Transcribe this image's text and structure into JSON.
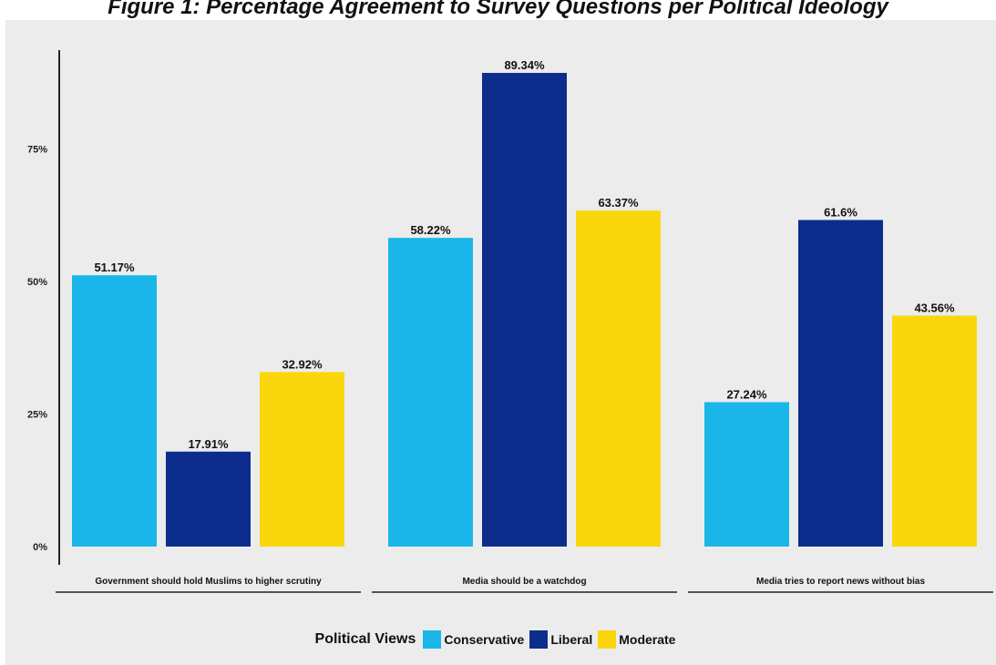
{
  "chart_data": {
    "type": "bar",
    "title": "Figure 1: Percentage Agreement to Survey Questions per Political Ideology",
    "categories": [
      "Government should hold Muslims to higher scrutiny",
      "Media should be a watchdog",
      "Media tries to report news without bias"
    ],
    "series": [
      {
        "name": "Conservative",
        "color": "#1ab6ea",
        "values": [
          51.17,
          58.22,
          27.24
        ],
        "labels": [
          "51.17%",
          "58.22%",
          "27.24%"
        ]
      },
      {
        "name": "Liberal",
        "color": "#0c2d8c",
        "values": [
          17.91,
          89.34,
          61.6
        ],
        "labels": [
          "17.91%",
          "89.34%",
          "61.6%"
        ]
      },
      {
        "name": "Moderate",
        "color": "#f9d70c",
        "values": [
          32.92,
          63.37,
          43.56
        ],
        "labels": [
          "32.92%",
          "63.37%",
          "43.56%"
        ]
      }
    ],
    "yticks": [
      0,
      25,
      50,
      75
    ],
    "ytick_labels": [
      "0%",
      "25%",
      "50%",
      "75%"
    ],
    "ylim": [
      0,
      92
    ],
    "legend_title": "Political Views",
    "legend_position": "bottom",
    "grid": false
  }
}
